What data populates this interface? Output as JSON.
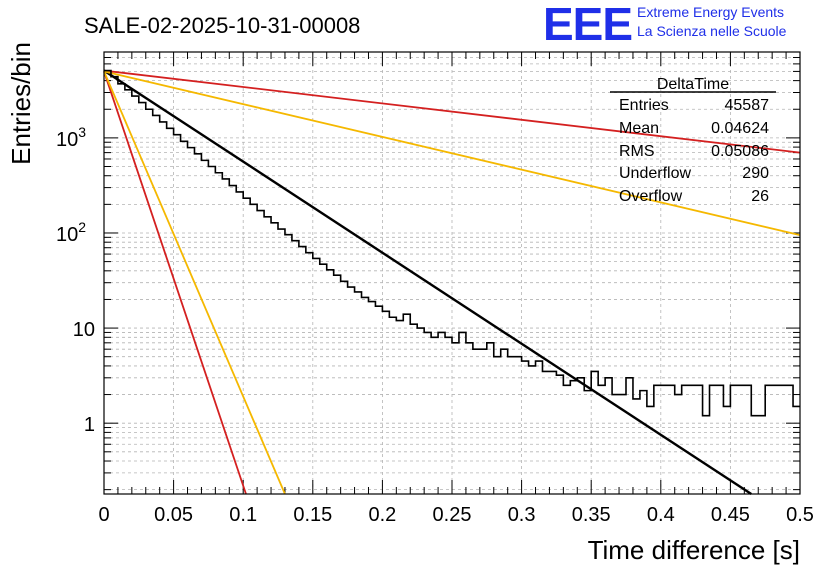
{
  "logo": {
    "mark": "EEE",
    "line1": "Extreme Energy Events",
    "line2": "La Scienza nelle Scuole",
    "color": "#1f2fe8"
  },
  "stats": {
    "name": "DeltaTime",
    "rows": [
      {
        "label": "Entries",
        "value": "45587"
      },
      {
        "label": "Mean",
        "value": "0.04624"
      },
      {
        "label": "RMS",
        "value": "0.05086"
      },
      {
        "label": "Underflow",
        "value": "290"
      },
      {
        "label": "Overflow",
        "value": "26"
      }
    ]
  },
  "chart_data": {
    "type": "line",
    "title": "SALE-02-2025-10-31-00008",
    "xlabel": "Time difference [s]",
    "ylabel": "Entries/bin",
    "xlim": [
      0,
      0.5
    ],
    "ylim": [
      0.18,
      8000
    ],
    "yscale": "log",
    "grid": true,
    "x_ticks": [
      "0",
      "0.05",
      "0.1",
      "0.15",
      "0.2",
      "0.25",
      "0.3",
      "0.35",
      "0.4",
      "0.45",
      "0.5"
    ],
    "y_ticks": [
      {
        "value": 1,
        "base": "1",
        "exp": ""
      },
      {
        "value": 10,
        "base": "10",
        "exp": ""
      },
      {
        "value": 100,
        "base": "10",
        "exp": "2"
      },
      {
        "value": 1000,
        "base": "10",
        "exp": "3"
      }
    ],
    "histogram": {
      "name": "DeltaTime",
      "color": "#000000",
      "bin_width": 0.005,
      "counts": [
        5100,
        4400,
        3700,
        3200,
        2750,
        2350,
        2000,
        1720,
        1470,
        1260,
        1080,
        920,
        790,
        680,
        580,
        500,
        430,
        370,
        315,
        270,
        232,
        200,
        172,
        148,
        128,
        110,
        96,
        83,
        72,
        62,
        54,
        47,
        41,
        36,
        31,
        27,
        24,
        21,
        19,
        17,
        15,
        13,
        12,
        14,
        11,
        10,
        9,
        8,
        9,
        8,
        7,
        9,
        7,
        6,
        6,
        7,
        5,
        6,
        5,
        5,
        4.5,
        4,
        4.5,
        3.5,
        3.5,
        3.2,
        2.5,
        2.8,
        3,
        2.2,
        3.5,
        2.5,
        3,
        2,
        2,
        3,
        1.8,
        2.2,
        1.5,
        2.5,
        2.5,
        2.5,
        2,
        2.5,
        2.5,
        2.5,
        1.2,
        2.5,
        2.5,
        1.5,
        2.5,
        2.5,
        2.5,
        1.2,
        1.2,
        2.5,
        2.5,
        2.5,
        2.5,
        1.5
      ]
    },
    "series": [
      {
        "name": "fit",
        "color": "#000000",
        "x": [
          0,
          0.465
        ],
        "y": [
          5100,
          0.18
        ],
        "width": 2.4
      },
      {
        "name": "red-steep",
        "color": "#d42020",
        "x": [
          0,
          0.102
        ],
        "y": [
          5000,
          0.18
        ],
        "width": 1.8
      },
      {
        "name": "yellow-steep",
        "color": "#f5b800",
        "x": [
          0,
          0.13
        ],
        "y": [
          5000,
          0.18
        ],
        "width": 1.8
      },
      {
        "name": "red-slow",
        "color": "#d42020",
        "x": [
          0,
          0.5
        ],
        "y": [
          5100,
          700
        ],
        "width": 1.8
      },
      {
        "name": "yellow-slow",
        "color": "#f5b800",
        "x": [
          0,
          0.5
        ],
        "y": [
          5000,
          95
        ],
        "width": 1.8
      }
    ]
  }
}
